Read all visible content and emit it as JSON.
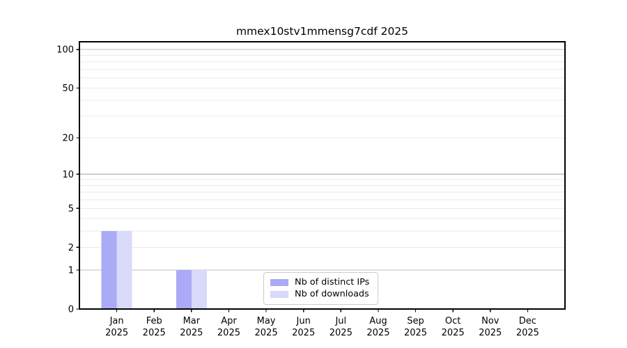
{
  "chart_data": {
    "type": "bar",
    "title": "mmex10stv1mmensg7cdf 2025",
    "categories": [
      "Jan 2025",
      "Feb 2025",
      "Mar 2025",
      "Apr 2025",
      "May 2025",
      "Jun 2025",
      "Jul 2025",
      "Aug 2025",
      "Sep 2025",
      "Oct 2025",
      "Nov 2025",
      "Dec 2025"
    ],
    "x_tick_line1": [
      "Jan",
      "Feb",
      "Mar",
      "Apr",
      "May",
      "Jun",
      "Jul",
      "Aug",
      "Sep",
      "Oct",
      "Nov",
      "Dec"
    ],
    "x_tick_line2": "2025",
    "series": [
      {
        "name": "Nb of distinct IPs",
        "color": "#aaaaf6",
        "values": [
          3,
          0,
          1,
          0,
          0,
          0,
          0,
          0,
          0,
          0,
          0,
          0
        ]
      },
      {
        "name": "Nb of downloads",
        "color": "#d9d9fa",
        "values": [
          3,
          0,
          1,
          0,
          0,
          0,
          0,
          0,
          0,
          0,
          0,
          0
        ]
      }
    ],
    "y_scale": "log1p",
    "y_ticks": [
      0,
      1,
      2,
      5,
      10,
      20,
      50,
      100
    ],
    "y_major_grid": [
      1,
      10,
      100
    ],
    "y_minor_grid": [
      2,
      3,
      4,
      5,
      6,
      7,
      8,
      9,
      20,
      30,
      40,
      50,
      60,
      70,
      80,
      90
    ],
    "ylim": [
      0,
      115
    ],
    "grid": true,
    "legend_position": "lower center",
    "colors": {
      "axis": "#000000",
      "tick_label": "#000000",
      "major_grid": "#bdbdbd",
      "minor_grid": "#e9e9e9",
      "background": "#ffffff"
    }
  }
}
